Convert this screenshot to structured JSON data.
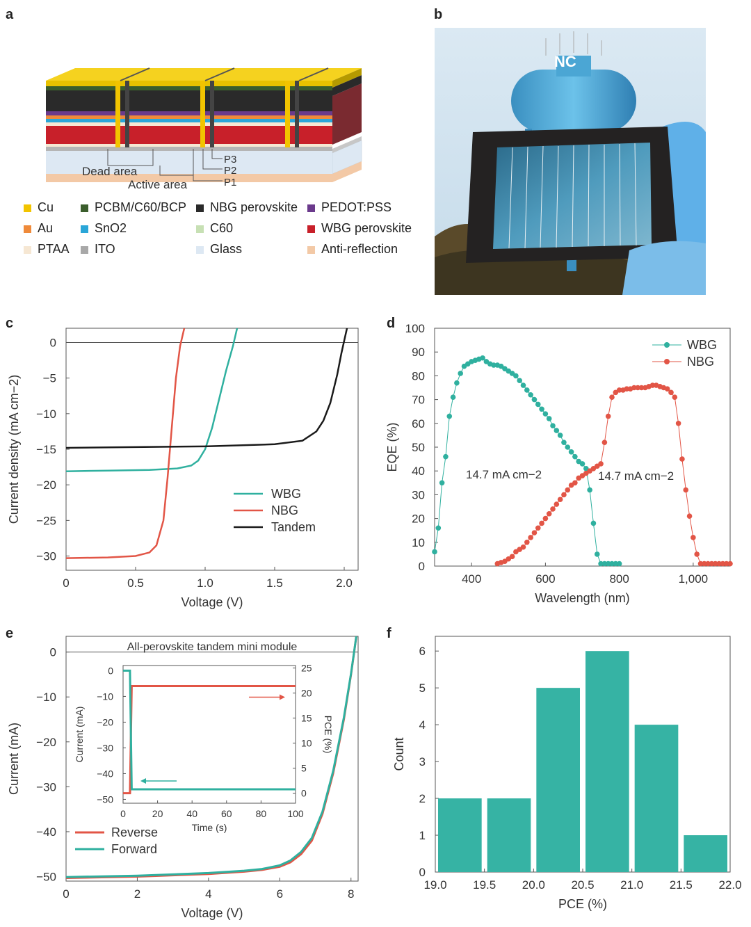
{
  "panel_letters": {
    "a": "a",
    "b": "b",
    "c": "c",
    "d": "d",
    "e": "e",
    "f": "f"
  },
  "panel_a": {
    "callouts": {
      "p3": "P3",
      "p2": "P2",
      "p1": "P1",
      "dead_area": "Dead area",
      "active_area": "Active area"
    },
    "legend": [
      {
        "label": "Cu",
        "color": "#f2c400"
      },
      {
        "label": "PCBM/C60/BCP",
        "color": "#3b5e2c"
      },
      {
        "label": "NBG perovskite",
        "color": "#2a2a2a"
      },
      {
        "label": "PEDOT:PSS",
        "color": "#6b3a8c"
      },
      {
        "label": "Au",
        "color": "#ef8a3a"
      },
      {
        "label": "SnO2",
        "color": "#2aa6d8"
      },
      {
        "label": "C60",
        "color": "#c7e0b4"
      },
      {
        "label": "WBG perovskite",
        "color": "#c8202a"
      },
      {
        "label": "PTAA",
        "color": "#f6e7d3"
      },
      {
        "label": "ITO",
        "color": "#a8a8a8"
      },
      {
        "label": "Glass",
        "color": "#dde8f3"
      },
      {
        "label": "Anti-reflection",
        "color": "#f3c9a6"
      }
    ]
  },
  "panel_b": {
    "description_icon": "tandem-module-photo-icon"
  },
  "chart_data": [
    {
      "id": "c",
      "type": "line",
      "xlabel": "Voltage (V)",
      "ylabel": "Current density (mA cm−2)",
      "xlim": [
        0,
        2.1
      ],
      "ylim": [
        -32,
        2
      ],
      "xticks": [
        0,
        0.5,
        1.0,
        1.5,
        2.0
      ],
      "xtick_labels": [
        "0",
        "0.5",
        "1.0",
        "1.5",
        "2.0"
      ],
      "yticks": [
        0,
        -5,
        -10,
        -15,
        -20,
        -25,
        -30
      ],
      "ytick_labels": [
        "0",
        "−5",
        "−10",
        "−15",
        "−20",
        "−25",
        "−30"
      ],
      "series": [
        {
          "name": "WBG",
          "color": "#2fb09f",
          "x": [
            0,
            0.3,
            0.6,
            0.8,
            0.9,
            0.95,
            1.0,
            1.05,
            1.1,
            1.15,
            1.2,
            1.23
          ],
          "y": [
            -18.1,
            -18.0,
            -17.9,
            -17.7,
            -17.3,
            -16.6,
            -15.0,
            -12.0,
            -8.0,
            -4.0,
            -0.5,
            2
          ]
        },
        {
          "name": "NBG",
          "color": "#e25546",
          "x": [
            0,
            0.3,
            0.5,
            0.6,
            0.65,
            0.7,
            0.73,
            0.76,
            0.79,
            0.82,
            0.85
          ],
          "y": [
            -30.3,
            -30.2,
            -30.0,
            -29.5,
            -28.5,
            -25.0,
            -19.0,
            -12.0,
            -5.0,
            -0.5,
            2
          ]
        },
        {
          "name": "Tandem",
          "color": "#1a1a1a",
          "x": [
            0,
            0.5,
            1.0,
            1.5,
            1.7,
            1.8,
            1.85,
            1.9,
            1.95,
            1.98,
            2.02
          ],
          "y": [
            -14.8,
            -14.7,
            -14.6,
            -14.3,
            -13.8,
            -12.5,
            -11.0,
            -8.5,
            -4.5,
            -1.5,
            2
          ]
        }
      ],
      "legend": [
        "WBG",
        "NBG",
        "Tandem"
      ]
    },
    {
      "id": "d",
      "type": "scatter",
      "xlabel": "Wavelength (nm)",
      "ylabel": "EQE (%)",
      "xlim": [
        300,
        1100
      ],
      "ylim": [
        0,
        100
      ],
      "xticks": [
        400,
        600,
        800,
        1000
      ],
      "xtick_labels": [
        "400",
        "600",
        "800",
        "1,000"
      ],
      "yticks": [
        0,
        10,
        20,
        30,
        40,
        50,
        60,
        70,
        80,
        90,
        100
      ],
      "ytick_labels": [
        "0",
        "10",
        "20",
        "30",
        "40",
        "50",
        "60",
        "70",
        "80",
        "90",
        "100"
      ],
      "annotations": [
        "14.7 mA cm−2",
        "14.7 mA cm−2"
      ],
      "legend": [
        "WBG",
        "NBG"
      ],
      "series": [
        {
          "name": "WBG",
          "color": "#2fb09f",
          "x": [
            300,
            310,
            320,
            330,
            340,
            350,
            360,
            370,
            380,
            390,
            400,
            410,
            420,
            430,
            440,
            450,
            460,
            470,
            480,
            490,
            500,
            510,
            520,
            530,
            540,
            550,
            560,
            570,
            580,
            590,
            600,
            610,
            620,
            630,
            640,
            650,
            660,
            670,
            680,
            690,
            700,
            710,
            720,
            730,
            740,
            750,
            760,
            770,
            780,
            790,
            800
          ],
          "y": [
            6,
            16,
            35,
            46,
            63,
            71,
            77,
            81,
            84,
            85,
            86,
            86.5,
            87,
            87.5,
            86,
            85,
            84.5,
            84.5,
            84,
            83,
            82,
            81,
            80,
            78,
            76,
            74,
            72,
            70,
            68,
            66,
            64,
            62,
            59,
            57,
            55,
            52,
            50,
            48,
            46,
            44,
            43,
            41,
            32,
            18,
            5,
            1,
            1,
            1,
            1,
            1,
            1
          ]
        },
        {
          "name": "NBG",
          "color": "#e25546",
          "x": [
            470,
            480,
            490,
            500,
            510,
            520,
            530,
            540,
            550,
            560,
            570,
            580,
            590,
            600,
            610,
            620,
            630,
            640,
            650,
            660,
            670,
            680,
            690,
            700,
            710,
            720,
            730,
            740,
            750,
            760,
            770,
            780,
            790,
            800,
            810,
            820,
            830,
            840,
            850,
            860,
            870,
            880,
            890,
            900,
            910,
            920,
            930,
            940,
            950,
            960,
            970,
            980,
            990,
            1000,
            1010,
            1020,
            1030,
            1040,
            1050,
            1060,
            1070,
            1080,
            1090,
            1100
          ],
          "y": [
            1,
            1.5,
            2,
            3,
            4,
            6,
            7,
            8,
            10,
            12,
            14,
            16,
            18,
            20,
            22,
            24,
            26,
            28,
            30,
            32,
            34,
            35,
            37,
            38,
            39,
            40,
            41,
            42,
            43,
            52,
            63,
            71,
            73,
            74,
            74,
            74.5,
            74.5,
            75,
            75,
            75,
            75,
            75.5,
            76,
            76,
            75.5,
            75,
            74.5,
            73,
            71,
            60,
            45,
            32,
            21,
            12,
            5,
            1,
            1,
            1,
            1,
            1,
            1,
            1,
            1,
            1
          ]
        }
      ]
    },
    {
      "id": "e",
      "type": "line",
      "title": "All-perovskite tandem mini module",
      "xlabel": "Voltage (V)",
      "ylabel": "Current (mA)",
      "xlim": [
        0,
        8.2
      ],
      "ylim": [
        -51,
        3.5
      ],
      "xticks": [
        0,
        2,
        4,
        6,
        8
      ],
      "xtick_labels": [
        "0",
        "2",
        "4",
        "6",
        "8"
      ],
      "yticks": [
        0,
        -10,
        -20,
        -30,
        -40,
        -50
      ],
      "ytick_labels": [
        "0",
        "−10",
        "−20",
        "−30",
        "−40",
        "−50"
      ],
      "legend": [
        "Reverse",
        "Forward"
      ],
      "series": [
        {
          "name": "Reverse",
          "color": "#e25546",
          "x": [
            0,
            2,
            4,
            5,
            5.5,
            6,
            6.3,
            6.6,
            6.9,
            7.2,
            7.5,
            7.8,
            8.0,
            8.15
          ],
          "y": [
            -50.3,
            -50.0,
            -49.4,
            -48.9,
            -48.5,
            -47.8,
            -46.8,
            -45.0,
            -42.0,
            -36.0,
            -27.0,
            -15.0,
            -5.0,
            3.5
          ]
        },
        {
          "name": "Forward",
          "color": "#2fb09f",
          "x": [
            0,
            2,
            4,
            5,
            5.5,
            6,
            6.3,
            6.6,
            6.9,
            7.2,
            7.5,
            7.8,
            8.0,
            8.15
          ],
          "y": [
            -50.1,
            -49.8,
            -49.2,
            -48.7,
            -48.3,
            -47.5,
            -46.4,
            -44.5,
            -41.4,
            -35.5,
            -26.5,
            -14.6,
            -4.8,
            3.5
          ]
        }
      ],
      "inset": {
        "xlabel": "Time (s)",
        "ylabel_left": "Current (mA)",
        "ylabel_right": "PCE (%)",
        "xlim": [
          0,
          100
        ],
        "ylim_left": [
          -51.5,
          2
        ],
        "ylim_right": [
          -2,
          25.5
        ],
        "xticks": [
          0,
          20,
          40,
          60,
          80,
          100
        ],
        "yticks_left": [
          0,
          -10,
          -20,
          -30,
          -40,
          -50
        ],
        "yticks_left_labels": [
          "0",
          "−10",
          "−20",
          "−30",
          "−40",
          "−50"
        ],
        "yticks_right": [
          0,
          5,
          10,
          15,
          20,
          25
        ],
        "series": [
          {
            "name": "PCE",
            "color": "#e25546",
            "axis": "right",
            "x": [
              0,
              4,
              5,
              100
            ],
            "y": [
              0,
              0,
              21.4,
              21.4
            ]
          },
          {
            "name": "Current",
            "color": "#2fb09f",
            "axis": "left",
            "x": [
              0,
              4,
              5,
              100
            ],
            "y": [
              0,
              0,
              -46.1,
              -46.1
            ]
          }
        ]
      }
    },
    {
      "id": "f",
      "type": "bar",
      "xlabel": "PCE (%)",
      "ylabel": "Count",
      "xlim": [
        19.0,
        22.0
      ],
      "ylim": [
        0,
        6.4
      ],
      "xticks": [
        19.0,
        19.5,
        20.0,
        20.5,
        21.0,
        21.5,
        22.0
      ],
      "xtick_labels": [
        "19.0",
        "19.5",
        "20.0",
        "20.5",
        "21.0",
        "21.5",
        "22.0"
      ],
      "yticks": [
        0,
        1,
        2,
        3,
        4,
        5,
        6
      ],
      "ytick_labels": [
        "0",
        "1",
        "2",
        "3",
        "4",
        "5",
        "6"
      ],
      "bin_starts": [
        19.0,
        19.5,
        20.0,
        20.5,
        21.0,
        21.5
      ],
      "bin_width": 0.5,
      "values": [
        2,
        2,
        5,
        6,
        4,
        1
      ],
      "color": "#36b3a4"
    }
  ]
}
